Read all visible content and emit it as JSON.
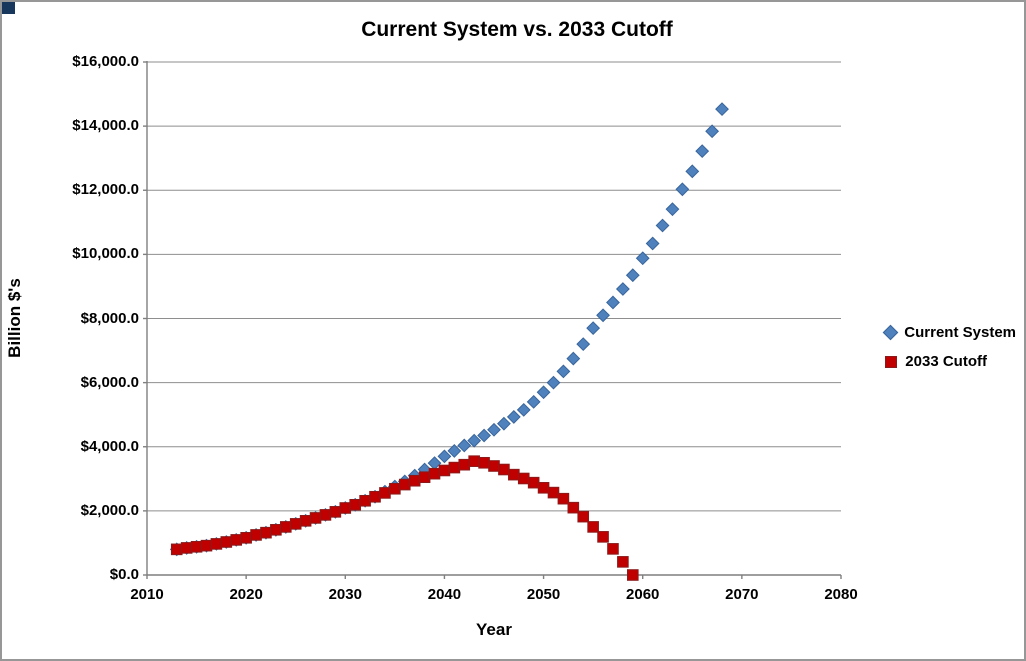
{
  "chart_data": {
    "type": "scatter",
    "title": "Current System vs. 2033 Cutoff",
    "xlabel": "Year",
    "ylabel": "Billion $'s",
    "xlim": [
      2010,
      2080
    ],
    "ylim": [
      0,
      16000
    ],
    "grid": "horizontal-only",
    "legend_position": "right",
    "x_ticks": [
      {
        "value": 2010,
        "label": "2010"
      },
      {
        "value": 2020,
        "label": "2020"
      },
      {
        "value": 2030,
        "label": "2030"
      },
      {
        "value": 2040,
        "label": "2040"
      },
      {
        "value": 2050,
        "label": "2050"
      },
      {
        "value": 2060,
        "label": "2060"
      },
      {
        "value": 2070,
        "label": "2070"
      },
      {
        "value": 2080,
        "label": "2080"
      }
    ],
    "y_ticks": [
      {
        "value": 0,
        "label": "$0.0"
      },
      {
        "value": 2000,
        "label": "$2,000.0"
      },
      {
        "value": 4000,
        "label": "$4,000.0"
      },
      {
        "value": 6000,
        "label": "$6,000.0"
      },
      {
        "value": 8000,
        "label": "$8,000.0"
      },
      {
        "value": 10000,
        "label": "$10,000.0"
      },
      {
        "value": 12000,
        "label": "$12,000.0"
      },
      {
        "value": 14000,
        "label": "$14,000.0"
      },
      {
        "value": 16000,
        "label": "$16,000.0"
      }
    ],
    "series": [
      {
        "name": "Current System",
        "marker": "diamond",
        "color": "#4f81bd",
        "border_color": "#39659b",
        "x": [
          2013,
          2014,
          2015,
          2016,
          2017,
          2018,
          2019,
          2020,
          2021,
          2022,
          2023,
          2024,
          2025,
          2026,
          2027,
          2028,
          2029,
          2030,
          2031,
          2032,
          2033,
          2034,
          2035,
          2036,
          2037,
          2038,
          2039,
          2040,
          2041,
          2042,
          2043,
          2044,
          2045,
          2046,
          2047,
          2048,
          2049,
          2050,
          2051,
          2052,
          2053,
          2054,
          2055,
          2056,
          2057,
          2058,
          2059,
          2060,
          2061,
          2062,
          2063,
          2064,
          2065,
          2066,
          2067,
          2068
        ],
        "y": [
          800,
          845,
          880,
          915,
          970,
          1030,
          1095,
          1160,
          1250,
          1320,
          1410,
          1500,
          1595,
          1690,
          1780,
          1875,
          1970,
          2090,
          2190,
          2315,
          2440,
          2600,
          2760,
          2920,
          3100,
          3290,
          3490,
          3700,
          3870,
          4040,
          4190,
          4350,
          4530,
          4720,
          4930,
          5150,
          5400,
          5700,
          6000,
          6350,
          6750,
          7200,
          7700,
          8100,
          8500,
          8920,
          9350,
          9880,
          10340,
          10900,
          11410,
          12030,
          12590,
          13220,
          13840,
          14530
        ]
      },
      {
        "name": "2033 Cutoff",
        "marker": "square",
        "color": "#c00000",
        "border_color": "#8b1a1a",
        "x": [
          2013,
          2014,
          2015,
          2016,
          2017,
          2018,
          2019,
          2020,
          2021,
          2022,
          2023,
          2024,
          2025,
          2026,
          2027,
          2028,
          2029,
          2030,
          2031,
          2032,
          2033,
          2034,
          2035,
          2036,
          2037,
          2038,
          2039,
          2040,
          2041,
          2042,
          2043,
          2044,
          2045,
          2046,
          2047,
          2048,
          2049,
          2050,
          2051,
          2052,
          2053,
          2054,
          2055,
          2056,
          2057,
          2058,
          2059
        ],
        "y": [
          800,
          845,
          880,
          915,
          970,
          1030,
          1095,
          1160,
          1250,
          1320,
          1410,
          1500,
          1595,
          1690,
          1780,
          1875,
          1970,
          2090,
          2190,
          2315,
          2440,
          2560,
          2690,
          2820,
          2940,
          3050,
          3160,
          3260,
          3350,
          3440,
          3550,
          3500,
          3400,
          3290,
          3130,
          3010,
          2880,
          2720,
          2570,
          2380,
          2100,
          1820,
          1500,
          1190,
          815,
          410,
          0
        ]
      }
    ],
    "style": {
      "gridline_color": "#8e8e8e",
      "axis_color": "#7f7f7f",
      "background": "#ffffff"
    }
  }
}
